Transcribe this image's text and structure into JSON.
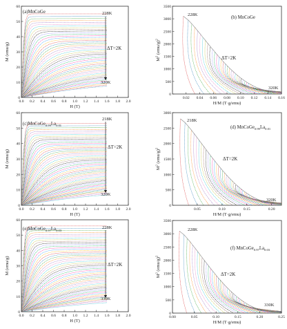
{
  "figure": {
    "panels": [
      {
        "id": "a",
        "label_main": "(a)MnCoGe",
        "label_sub": "",
        "label_main2": "",
        "label_sub2": "",
        "xlabel": "H (T)",
        "ylabel": "M (emu/g)"
      },
      {
        "id": "b",
        "label_main": "(b) MnCoGe",
        "label_sub": "",
        "label_main2": "",
        "label_sub2": "",
        "xlabel": "H/M (T·g/emu)",
        "ylabel": "M",
        "ylabel_sup": "2",
        "ylabel_tail": " (emu/g)",
        "ylabel_tail_sup": "2"
      },
      {
        "id": "c",
        "label_main": "(c)MnCoGe",
        "label_sub": "0.99",
        "label_main2": "La",
        "label_sub2": "0.01",
        "xlabel": "H (T)",
        "ylabel": "M (emu/g)"
      },
      {
        "id": "d",
        "label_main": "(d) MnCoGe",
        "label_sub": "0.99",
        "label_main2": "La",
        "label_sub2": "0.01",
        "xlabel": "H/M (T·g/emu)",
        "ylabel": "M",
        "ylabel_sup": "2",
        "ylabel_tail": " (emu/g)",
        "ylabel_tail_sup": "2"
      },
      {
        "id": "e",
        "label_main": "(e)MnCoGe",
        "label_sub": "0.97",
        "label_main2": "La",
        "label_sub2": "0.03",
        "xlabel": "H (T)",
        "ylabel": "M (emu/g)"
      },
      {
        "id": "f",
        "label_main": "(f) MnCoGe",
        "label_sub": "0.97",
        "label_main2": "La",
        "label_sub2": "0.03",
        "xlabel": "H/M (T·g/emu)",
        "ylabel": "M",
        "ylabel_sup": "2",
        "ylabel_tail": " (emu/g)",
        "ylabel_tail_sup": "2"
      }
    ]
  },
  "chart_data": [
    {
      "panel": "a",
      "type": "line",
      "title": "(a)MnCoGe",
      "xlabel": "H (T)",
      "ylabel": "M (emu/g)",
      "xlim": [
        0,
        2.0
      ],
      "ylim": [
        0,
        60
      ],
      "xticks": [
        "0.0",
        "0.2",
        "0.4",
        "0.6",
        "0.8",
        "1.0",
        "1.2",
        "1.4",
        "1.6",
        "1.8",
        "2.0"
      ],
      "yticks": [
        "0",
        "10",
        "20",
        "30",
        "40",
        "50",
        "60"
      ],
      "annotations": [
        "228K",
        "320K",
        "ΔT=2K"
      ],
      "isotherms": {
        "T_start": 228,
        "T_end": 320,
        "step": 2,
        "Hmax": 1.6,
        "M_top": 55,
        "M_bottom": 8
      }
    },
    {
      "panel": "b",
      "type": "line",
      "title": "(b) MnCoGe",
      "xlabel": "H/M (T·g/emu)",
      "ylabel": "M2 (emu/g)2",
      "xlim": [
        0,
        0.16
      ],
      "ylim": [
        0,
        3500
      ],
      "xticks": [
        "0.02",
        "0.04",
        "0.06",
        "0.08",
        "0.10",
        "0.12",
        "0.14",
        "0.16"
      ],
      "yticks": [
        "0",
        "500",
        "1000",
        "1500",
        "2000",
        "2500",
        "3000",
        "3500"
      ],
      "annotations": [
        "228K",
        "320K",
        "ΔT=2K"
      ],
      "arrott": {
        "n": 47,
        "x0_first": 0.012,
        "x0_last": 0.15,
        "y_top_first": 3100,
        "y_top_last": 100
      }
    },
    {
      "panel": "c",
      "type": "line",
      "title": "(c)MnCoGe0.99La0.01",
      "xlabel": "H (T)",
      "ylabel": "M (emu/g)",
      "xlim": [
        0,
        2.0
      ],
      "ylim": [
        0,
        60
      ],
      "xticks": [
        "0.0",
        "0.2",
        "0.4",
        "0.6",
        "0.8",
        "1.0",
        "1.2",
        "1.4",
        "1.6",
        "1.8",
        "2.0"
      ],
      "yticks": [
        "0",
        "10",
        "20",
        "30",
        "40",
        "50",
        "60"
      ],
      "annotations": [
        "218K",
        "320K",
        "ΔT=2K"
      ],
      "isotherms": {
        "T_start": 218,
        "T_end": 320,
        "step": 2,
        "Hmax": 1.6,
        "M_top": 53,
        "M_bottom": 7
      }
    },
    {
      "panel": "d",
      "type": "line",
      "title": "(d) MnCoGe0.99La0.01",
      "xlabel": "H/M (T·g/emu)",
      "ylabel": "M2 (emu/g)2",
      "xlim": [
        0,
        0.22
      ],
      "ylim": [
        0,
        3000
      ],
      "xticks": [
        "0.05",
        "0.10",
        "0.15",
        "0.20"
      ],
      "yticks": [
        "0",
        "500",
        "1000",
        "1500",
        "2000",
        "2500",
        "3000"
      ],
      "annotations": [
        "218K",
        "320K",
        "ΔT=2K"
      ],
      "arrott": {
        "n": 52,
        "x0_first": 0.012,
        "x0_last": 0.21,
        "y_top_first": 2800,
        "y_top_last": 60
      }
    },
    {
      "panel": "e",
      "type": "line",
      "title": "(e)MnCoGe0.97La0.03",
      "xlabel": "H (T)",
      "ylabel": "M (emu/g)",
      "xlim": [
        0,
        2.0
      ],
      "ylim": [
        0,
        60
      ],
      "xticks": [
        "0.0",
        "0.2",
        "0.4",
        "0.6",
        "0.8",
        "1.0",
        "1.2",
        "1.4",
        "1.6",
        "1.8",
        "2.0"
      ],
      "yticks": [
        "0",
        "10",
        "20",
        "30",
        "40",
        "50",
        "60"
      ],
      "annotations": [
        "228K",
        "330K",
        "ΔT=2K"
      ],
      "isotherms": {
        "T_start": 228,
        "T_end": 330,
        "step": 2,
        "Hmax": 1.6,
        "M_top": 56,
        "M_bottom": 6
      }
    },
    {
      "panel": "f",
      "type": "line",
      "title": "(f) MnCoGe0.97La0.03",
      "xlabel": "H/M (T·g/emu)",
      "ylabel": "M2 (emu/g)2",
      "xlim": [
        0,
        0.25
      ],
      "ylim": [
        0,
        3500
      ],
      "xticks": [
        "0.00",
        "0.05",
        "0.10",
        "0.15",
        "0.20",
        "0.25"
      ],
      "yticks": [
        "0",
        "500",
        "1000",
        "1500",
        "2000",
        "2500",
        "3000",
        "3500"
      ],
      "annotations": [
        "228K",
        "330K",
        "ΔT=2K"
      ],
      "arrott": {
        "n": 52,
        "x0_first": 0.012,
        "x0_last": 0.23,
        "y_top_first": 3100,
        "y_top_last": 60
      }
    }
  ]
}
